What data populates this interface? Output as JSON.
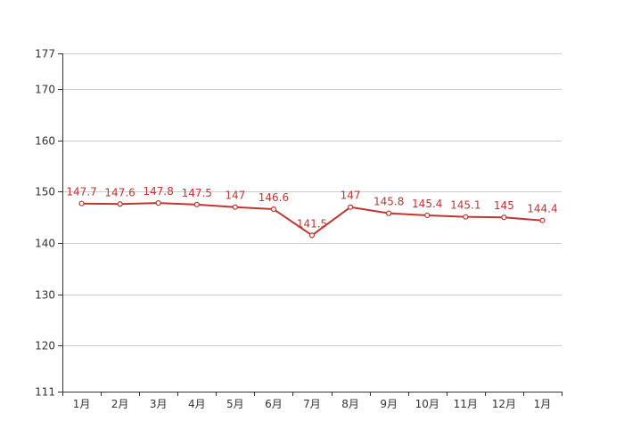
{
  "chart_data": {
    "type": "line",
    "categories": [
      "1月",
      "2月",
      "3月",
      "4月",
      "5月",
      "6月",
      "7月",
      "8月",
      "9月",
      "10月",
      "11月",
      "12月",
      "1月"
    ],
    "series": [
      {
        "values": [
          147.7,
          147.6,
          147.8,
          147.5,
          147,
          146.6,
          141.5,
          147,
          145.8,
          145.4,
          145.1,
          145,
          144.4
        ],
        "labels": [
          "147.7",
          "147.6",
          "147.8",
          "147.5",
          "147",
          "146.6",
          "141.5",
          "147",
          "145.8",
          "145.4",
          "145.1",
          "145",
          "144.4"
        ]
      }
    ],
    "ylim": [
      111,
      177
    ],
    "yticks": [
      111,
      120,
      130,
      140,
      150,
      160,
      170,
      177
    ],
    "ytick_labels": [
      "111",
      "120",
      "130",
      "140",
      "150",
      "160",
      "170",
      "177"
    ],
    "grid": true,
    "colors": {
      "line": "#c23531",
      "grid": "#cccccc",
      "axis": "#333333"
    }
  }
}
